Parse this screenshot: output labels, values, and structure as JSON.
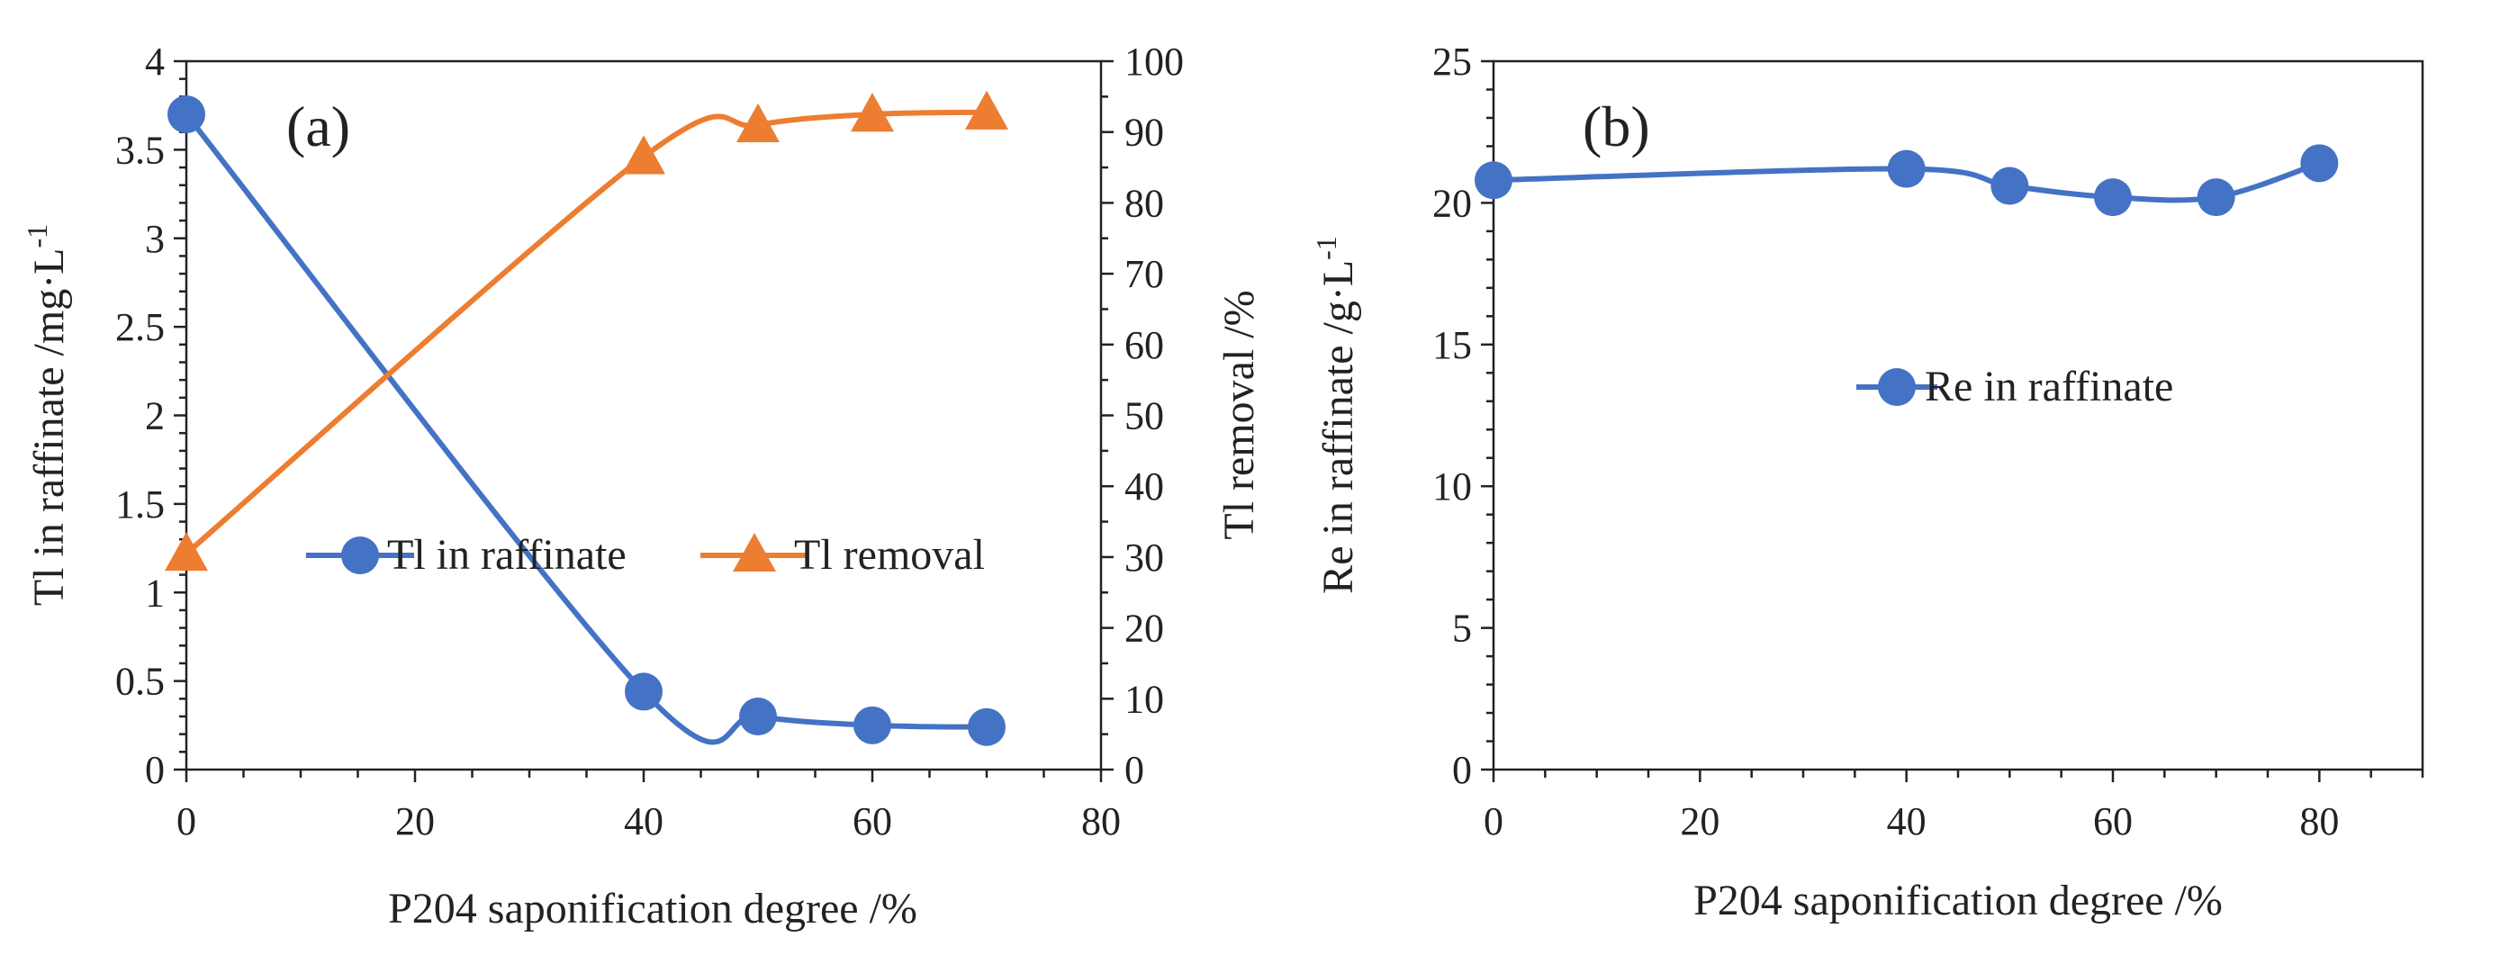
{
  "chart_data": [
    {
      "panel_label": "(a)",
      "type": "line",
      "xlabel": "P204 saponification  degree /%",
      "ylabel": "Tl in raffinate  /mg·L",
      "ylabel_sup": "-1",
      "y2label": "Tl removal /%",
      "xlim": [
        0,
        80
      ],
      "ylim": [
        0,
        4
      ],
      "y2lim": [
        0,
        100
      ],
      "xticks": [
        0,
        20,
        40,
        60,
        80
      ],
      "yticks": [
        0,
        0.5,
        1,
        1.5,
        2,
        2.5,
        3,
        3.5,
        4
      ],
      "y2ticks": [
        0,
        10,
        20,
        30,
        40,
        50,
        60,
        70,
        80,
        90,
        100
      ],
      "xtick_labels": [
        "0",
        "20",
        "40",
        "60",
        "80"
      ],
      "ytick_labels": [
        "0",
        "0.5",
        "1",
        "1.5",
        "2",
        "2.5",
        "3",
        "3.5",
        "4"
      ],
      "y2tick_labels": [
        "0",
        "10",
        "20",
        "30",
        "40",
        "50",
        "60",
        "70",
        "80",
        "90",
        "100"
      ],
      "series": [
        {
          "name": "Tl in raffinate",
          "axis": "left",
          "marker": "circle",
          "color": "#4472C4",
          "x": [
            0,
            40,
            50,
            60,
            70
          ],
          "values": [
            3.7,
            0.44,
            0.3,
            0.25,
            0.24
          ]
        },
        {
          "name": "Tl removal",
          "axis": "right",
          "marker": "triangle",
          "color": "#ED7D31",
          "x": [
            0,
            40,
            50,
            60,
            70
          ],
          "values": [
            30.5,
            86.5,
            91,
            92.5,
            92.8
          ]
        }
      ],
      "legend_position": "center-right"
    },
    {
      "panel_label": "(b)",
      "type": "line",
      "xlabel": "P204 saponification  degree /%",
      "ylabel": "Re in raffinate  /g·L",
      "ylabel_sup": "-1",
      "xlim": [
        0,
        90
      ],
      "ylim": [
        0,
        25
      ],
      "xticks": [
        0,
        20,
        40,
        60,
        80
      ],
      "yticks": [
        0,
        5,
        10,
        15,
        20,
        25
      ],
      "xtick_labels": [
        "0",
        "20",
        "40",
        "60",
        "80"
      ],
      "ytick_labels": [
        "0",
        "5",
        "10",
        "15",
        "20",
        "25"
      ],
      "series": [
        {
          "name": "Re in raffinate",
          "axis": "left",
          "marker": "circle",
          "color": "#4472C4",
          "x": [
            0,
            40,
            50,
            60,
            70,
            80
          ],
          "values": [
            20.8,
            21.2,
            20.6,
            20.2,
            20.2,
            21.4
          ]
        }
      ],
      "legend_position": "center"
    }
  ]
}
